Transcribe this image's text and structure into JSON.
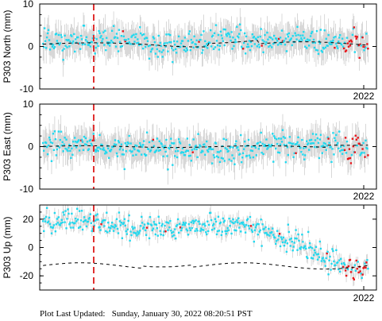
{
  "footer": {
    "label": "Plot Last Updated:",
    "value": "Sunday, January 30, 2022 08:20:51 PST"
  },
  "colors": {
    "normal_points": "#22d8ee",
    "recent_points": "#e8161b",
    "error_bars": "#c8c8c8",
    "model_line": "#000000",
    "event_line": "#e03030"
  },
  "chart_data": [
    {
      "type": "scatter",
      "ylabel": "P303 North (mm)",
      "ylim": [
        -10,
        10
      ],
      "yticks": [
        -10,
        0,
        10
      ],
      "xtick_label": "2022",
      "series": [
        {
          "kind": "gps-daily-positions",
          "values_summary": {
            "mean": 1,
            "scatter": 2
          }
        },
        {
          "kind": "model-fit",
          "values_summary": {
            "start": 0.5,
            "end": 1.5
          }
        },
        {
          "kind": "recent-positions",
          "values_summary": {
            "mean": 2
          }
        }
      ],
      "event_marker": "vertical dashed line",
      "grid": false
    },
    {
      "type": "scatter",
      "ylabel": "P303 East (mm)",
      "ylim": [
        -10,
        10
      ],
      "yticks": [
        -10,
        0,
        10
      ],
      "xtick_label": "2022",
      "series": [
        {
          "kind": "gps-daily-positions",
          "values_summary": {
            "mean": 0,
            "scatter": 2
          }
        },
        {
          "kind": "model-fit",
          "values_summary": {
            "start": 0,
            "end": 0.5
          }
        },
        {
          "kind": "recent-positions",
          "values_summary": {
            "mean": 1
          }
        }
      ],
      "event_marker": "vertical dashed line",
      "grid": false
    },
    {
      "type": "scatter",
      "ylabel": "P303 Up (mm)",
      "ylim": [
        -30,
        30
      ],
      "yticks": [
        -20,
        0,
        20
      ],
      "xtick_label": "2022",
      "series": [
        {
          "kind": "gps-daily-positions",
          "values_summary": {
            "start": 18,
            "end": -15
          }
        },
        {
          "kind": "model-fit",
          "values_summary": {
            "start": -13,
            "end": -12
          }
        },
        {
          "kind": "recent-positions",
          "values_summary": {
            "mean": -14
          }
        }
      ],
      "event_marker": "vertical dashed line",
      "grid": false
    }
  ]
}
